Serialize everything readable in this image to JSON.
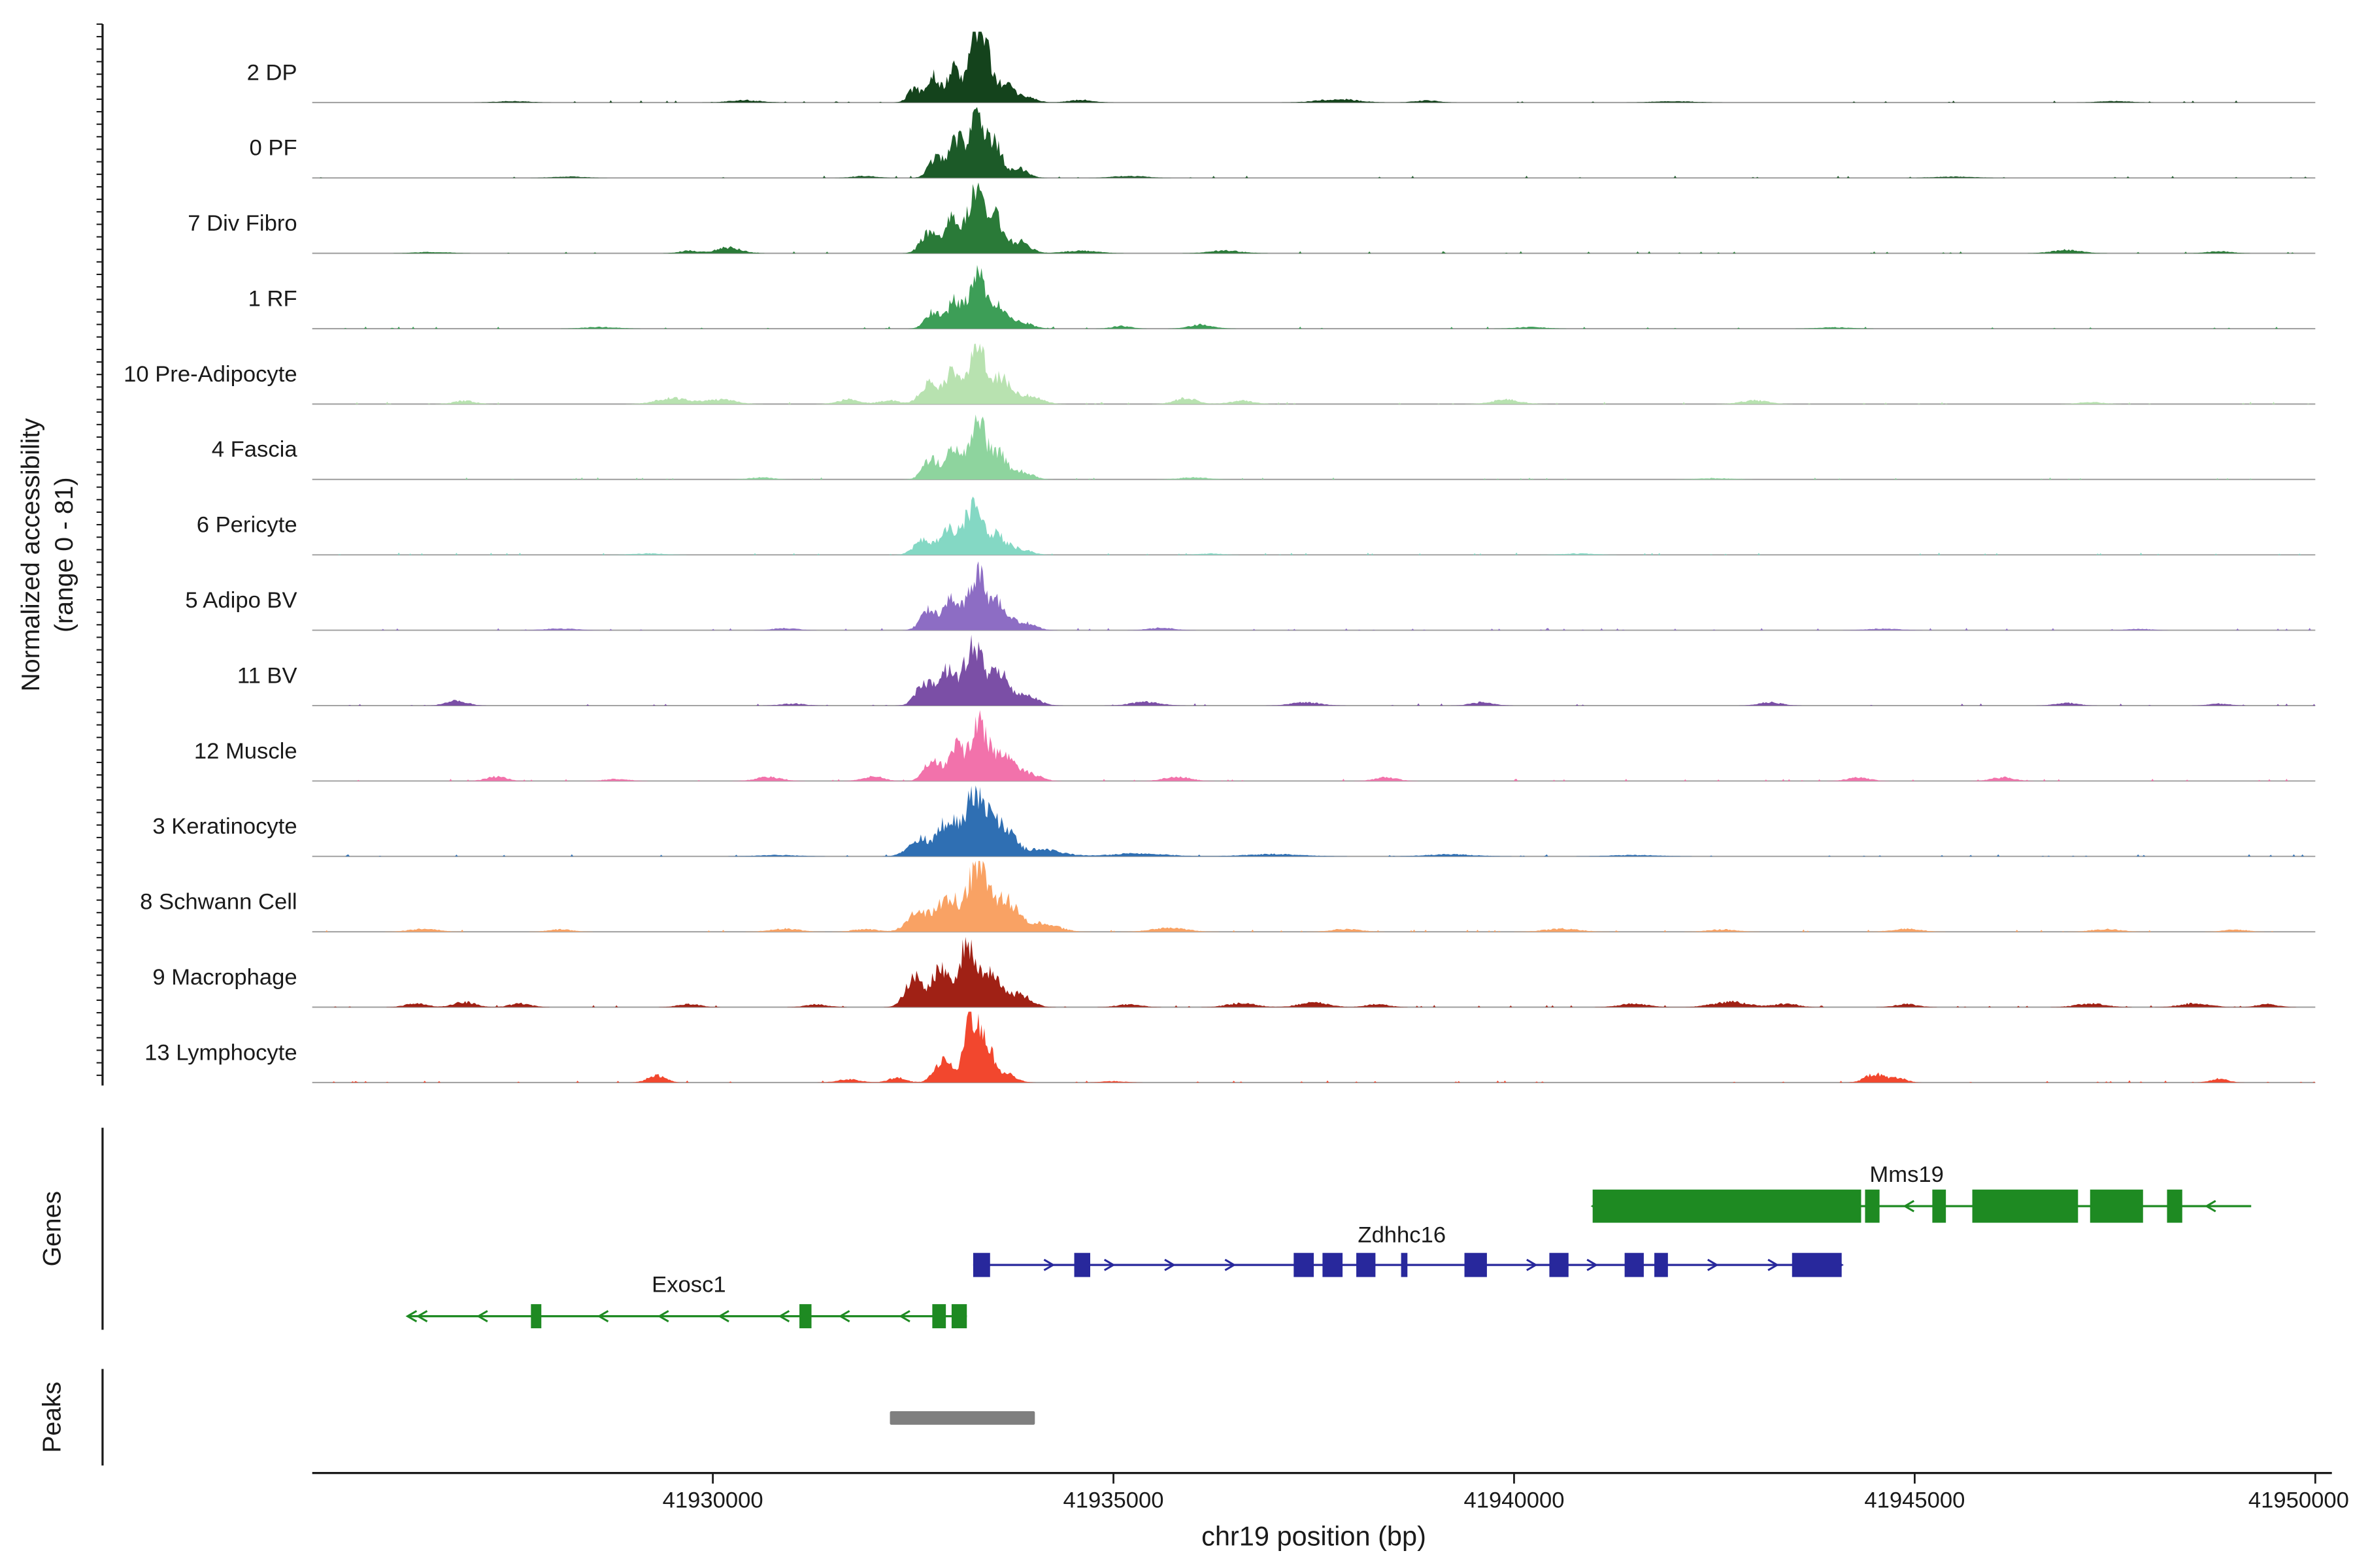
{
  "figure": {
    "y_axis_label_line1": "Normalized accessibility",
    "y_axis_label_line2": "(range 0 - 81)",
    "x_axis_label": "chr19 position (bp)",
    "genes_section_label": "Genes",
    "peaks_section_label": "Peaks"
  },
  "chart_data": {
    "type": "area",
    "title": "",
    "xlabel": "chr19 position (bp)",
    "ylabel": "Normalized accessibility (range 0 - 81)",
    "x_range_bp": [
      41925000,
      41950000
    ],
    "x_ticks": [
      41930000,
      41935000,
      41940000,
      41945000,
      41950000
    ],
    "x_tick_labels": [
      "41930000",
      "41935000",
      "41940000",
      "41945000",
      "41950000"
    ],
    "track_y_range": [
      0,
      81
    ],
    "bump_encoding": "[center_bp, width_bp, height_fraction_of_track]",
    "tracks": [
      {
        "label": "2 DP",
        "color": "#14431c",
        "bumps": [
          [
            41932520,
            80,
            0.22
          ],
          [
            41932760,
            70,
            0.4
          ],
          [
            41933000,
            80,
            0.5
          ],
          [
            41933280,
            90,
            0.97
          ],
          [
            41933420,
            70,
            0.6
          ],
          [
            41933640,
            90,
            0.3
          ],
          [
            41933900,
            120,
            0.1
          ],
          [
            41930400,
            200,
            0.035
          ],
          [
            41934600,
            150,
            0.04
          ],
          [
            41937800,
            250,
            0.05
          ],
          [
            41938900,
            150,
            0.03
          ],
          [
            41927500,
            200,
            0.02
          ],
          [
            41942000,
            250,
            0.02
          ],
          [
            41947500,
            200,
            0.02
          ]
        ]
      },
      {
        "label": "0 PF",
        "color": "#1c5a28",
        "bumps": [
          [
            41932780,
            90,
            0.3
          ],
          [
            41933040,
            90,
            0.55
          ],
          [
            41933300,
            100,
            0.92
          ],
          [
            41933530,
            80,
            0.45
          ],
          [
            41933800,
            120,
            0.15
          ],
          [
            41931900,
            150,
            0.03
          ],
          [
            41935200,
            200,
            0.03
          ],
          [
            41928200,
            200,
            0.02
          ],
          [
            41945500,
            250,
            0.02
          ]
        ]
      },
      {
        "label": "7 Div Fibro",
        "color": "#2a7a38",
        "bumps": [
          [
            41932700,
            100,
            0.32
          ],
          [
            41932980,
            90,
            0.55
          ],
          [
            41933280,
            100,
            0.95
          ],
          [
            41933520,
            90,
            0.55
          ],
          [
            41933820,
            130,
            0.18
          ],
          [
            41930200,
            150,
            0.09
          ],
          [
            41929700,
            120,
            0.04
          ],
          [
            41934600,
            200,
            0.04
          ],
          [
            41936400,
            200,
            0.04
          ],
          [
            41946900,
            180,
            0.05
          ],
          [
            41948800,
            150,
            0.03
          ],
          [
            41926500,
            200,
            0.02
          ]
        ]
      },
      {
        "label": "1 RF",
        "color": "#3d9e57",
        "bumps": [
          [
            41932740,
            90,
            0.25
          ],
          [
            41933020,
            90,
            0.42
          ],
          [
            41933300,
            100,
            0.78
          ],
          [
            41933560,
            100,
            0.35
          ],
          [
            41933850,
            130,
            0.1
          ],
          [
            41936100,
            150,
            0.06
          ],
          [
            41935100,
            120,
            0.04
          ],
          [
            41928600,
            200,
            0.025
          ],
          [
            41940200,
            180,
            0.025
          ],
          [
            41944000,
            200,
            0.02
          ]
        ]
      },
      {
        "label": "10 Pre-Adipocyte",
        "color": "#b8e2b0",
        "bumps": [
          [
            41932700,
            110,
            0.3
          ],
          [
            41933000,
            100,
            0.48
          ],
          [
            41933300,
            110,
            0.8
          ],
          [
            41933600,
            120,
            0.38
          ],
          [
            41933950,
            150,
            0.12
          ],
          [
            41926900,
            130,
            0.05
          ],
          [
            41929500,
            200,
            0.09
          ],
          [
            41930100,
            180,
            0.07
          ],
          [
            41931700,
            140,
            0.07
          ],
          [
            41932200,
            120,
            0.06
          ],
          [
            41935900,
            140,
            0.09
          ],
          [
            41936600,
            150,
            0.05
          ],
          [
            41939900,
            180,
            0.065
          ],
          [
            41943000,
            170,
            0.055
          ],
          [
            41947200,
            150,
            0.03
          ]
        ]
      },
      {
        "label": "4 Fascia",
        "color": "#8ed49e",
        "bumps": [
          [
            41932720,
            100,
            0.3
          ],
          [
            41933010,
            90,
            0.5
          ],
          [
            41933300,
            100,
            0.88
          ],
          [
            41933560,
            100,
            0.38
          ],
          [
            41933850,
            130,
            0.12
          ],
          [
            41930600,
            150,
            0.03
          ],
          [
            41936000,
            180,
            0.03
          ],
          [
            41942500,
            200,
            0.02
          ]
        ]
      },
      {
        "label": "6 Pericyte",
        "color": "#84d8c4",
        "bumps": [
          [
            41932620,
            110,
            0.22
          ],
          [
            41932930,
            100,
            0.38
          ],
          [
            41933230,
            110,
            0.68
          ],
          [
            41933520,
            120,
            0.3
          ],
          [
            41933820,
            140,
            0.09
          ],
          [
            41929200,
            200,
            0.02
          ],
          [
            41940800,
            200,
            0.02
          ],
          [
            41936200,
            150,
            0.02
          ]
        ]
      },
      {
        "label": "5 Adipo BV",
        "color": "#8d6dc4",
        "bumps": [
          [
            41932700,
            100,
            0.32
          ],
          [
            41932990,
            90,
            0.5
          ],
          [
            41933290,
            100,
            0.86
          ],
          [
            41933560,
            110,
            0.4
          ],
          [
            41933870,
            140,
            0.12
          ],
          [
            41930900,
            150,
            0.03
          ],
          [
            41935600,
            160,
            0.035
          ],
          [
            41928100,
            200,
            0.025
          ],
          [
            41944600,
            200,
            0.025
          ],
          [
            41947800,
            150,
            0.02
          ]
        ]
      },
      {
        "label": "11 BV",
        "color": "#7b4fa6",
        "bumps": [
          [
            41932650,
            110,
            0.35
          ],
          [
            41932940,
            100,
            0.52
          ],
          [
            41933250,
            110,
            0.9
          ],
          [
            41933560,
            120,
            0.48
          ],
          [
            41933900,
            150,
            0.16
          ],
          [
            41926800,
            130,
            0.075
          ],
          [
            41935400,
            180,
            0.055
          ],
          [
            41937400,
            180,
            0.05
          ],
          [
            41939600,
            140,
            0.05
          ],
          [
            41943200,
            140,
            0.05
          ],
          [
            41946900,
            140,
            0.04
          ],
          [
            41948800,
            130,
            0.03
          ],
          [
            41931000,
            150,
            0.03
          ]
        ]
      },
      {
        "label": "12 Muscle",
        "color": "#f272ab",
        "bumps": [
          [
            41932740,
            100,
            0.3
          ],
          [
            41933040,
            100,
            0.5
          ],
          [
            41933330,
            100,
            0.85
          ],
          [
            41933620,
            120,
            0.4
          ],
          [
            41933930,
            140,
            0.12
          ],
          [
            41927300,
            130,
            0.065
          ],
          [
            41930700,
            160,
            0.06
          ],
          [
            41932000,
            130,
            0.07
          ],
          [
            41935800,
            160,
            0.065
          ],
          [
            41938400,
            140,
            0.055
          ],
          [
            41944300,
            140,
            0.05
          ],
          [
            41946100,
            140,
            0.055
          ],
          [
            41928800,
            150,
            0.03
          ]
        ]
      },
      {
        "label": "3 Keratinocyte",
        "color": "#2f6fb3",
        "bumps": [
          [
            41932580,
            140,
            0.25
          ],
          [
            41932930,
            120,
            0.5
          ],
          [
            41933280,
            130,
            0.92
          ],
          [
            41933600,
            140,
            0.48
          ],
          [
            41934100,
            250,
            0.1
          ],
          [
            41935300,
            350,
            0.045
          ],
          [
            41937000,
            350,
            0.035
          ],
          [
            41939200,
            300,
            0.03
          ],
          [
            41941500,
            300,
            0.02
          ],
          [
            41930800,
            250,
            0.02
          ]
        ]
      },
      {
        "label": "8 Schwann Cell",
        "color": "#f9a264",
        "bumps": [
          [
            41932580,
            140,
            0.3
          ],
          [
            41932940,
            120,
            0.52
          ],
          [
            41933300,
            120,
            0.97
          ],
          [
            41933640,
            140,
            0.5
          ],
          [
            41934100,
            200,
            0.13
          ],
          [
            41926400,
            180,
            0.045
          ],
          [
            41928100,
            150,
            0.035
          ],
          [
            41930900,
            180,
            0.045
          ],
          [
            41935700,
            220,
            0.055
          ],
          [
            41937900,
            180,
            0.04
          ],
          [
            41940600,
            220,
            0.045
          ],
          [
            41942600,
            180,
            0.035
          ],
          [
            41944900,
            180,
            0.045
          ],
          [
            41947400,
            180,
            0.04
          ],
          [
            41949000,
            140,
            0.035
          ],
          [
            41931900,
            150,
            0.04
          ]
        ]
      },
      {
        "label": "9 Macrophage",
        "color": "#a02115",
        "bumps": [
          [
            41932520,
            110,
            0.45
          ],
          [
            41932840,
            100,
            0.6
          ],
          [
            41933180,
            100,
            0.98
          ],
          [
            41933470,
            110,
            0.48
          ],
          [
            41933820,
            140,
            0.2
          ],
          [
            41926300,
            130,
            0.06
          ],
          [
            41926900,
            140,
            0.075
          ],
          [
            41927600,
            130,
            0.055
          ],
          [
            41929700,
            140,
            0.045
          ],
          [
            41931300,
            140,
            0.04
          ],
          [
            41936600,
            180,
            0.06
          ],
          [
            41937500,
            180,
            0.07
          ],
          [
            41938300,
            140,
            0.045
          ],
          [
            41941500,
            180,
            0.05
          ],
          [
            41942700,
            220,
            0.08
          ],
          [
            41943400,
            150,
            0.05
          ],
          [
            41944900,
            140,
            0.045
          ],
          [
            41947200,
            180,
            0.055
          ],
          [
            41948500,
            180,
            0.06
          ],
          [
            41949400,
            130,
            0.045
          ],
          [
            41935200,
            150,
            0.04
          ]
        ]
      },
      {
        "label": "13 Lymphocyte",
        "color": "#f2472e",
        "bumps": [
          [
            41932880,
            110,
            0.32
          ],
          [
            41933230,
            90,
            1.0
          ],
          [
            41933420,
            80,
            0.55
          ],
          [
            41933660,
            120,
            0.14
          ],
          [
            41929300,
            110,
            0.11
          ],
          [
            41931700,
            140,
            0.05
          ],
          [
            41932300,
            110,
            0.07
          ],
          [
            41944500,
            120,
            0.13
          ],
          [
            41944800,
            100,
            0.07
          ],
          [
            41948800,
            110,
            0.055
          ],
          [
            41935000,
            150,
            0.02
          ]
        ]
      }
    ],
    "genes": [
      {
        "name": "Mms19",
        "strand": "-",
        "color": "#1e8a22",
        "start": 41940980,
        "end": 41949200,
        "row": 0,
        "label_bp": 41944900,
        "exons": [
          [
            41940980,
            41944330
          ],
          [
            41944380,
            41944560
          ],
          [
            41945220,
            41945390
          ],
          [
            41945720,
            41947040
          ],
          [
            41947190,
            41947850
          ],
          [
            41948150,
            41948340
          ]
        ]
      },
      {
        "name": "Zdhhc16",
        "strand": "+",
        "color": "#28289c",
        "start": 41933250,
        "end": 41944090,
        "row": 1,
        "label_bp": 41938600,
        "exons": [
          [
            41933250,
            41933460
          ],
          [
            41934510,
            41934710
          ],
          [
            41937250,
            41937500
          ],
          [
            41937610,
            41937860
          ],
          [
            41938030,
            41938270
          ],
          [
            41938590,
            41938670
          ],
          [
            41939380,
            41939660
          ],
          [
            41940440,
            41940680
          ],
          [
            41941380,
            41941620
          ],
          [
            41941750,
            41941920
          ],
          [
            41943470,
            41944090
          ]
        ]
      },
      {
        "name": "Exosc1",
        "strand": "-",
        "color": "#1e8a22",
        "start": 41926190,
        "end": 41933170,
        "row": 2,
        "label_bp": 41929700,
        "exons": [
          [
            41927730,
            41927860
          ],
          [
            41931080,
            41931230
          ],
          [
            41932740,
            41932910
          ],
          [
            41932980,
            41933170
          ]
        ]
      }
    ],
    "peaks": [
      {
        "start": 41932210,
        "end": 41934020,
        "color": "#7f7f7f"
      }
    ]
  }
}
